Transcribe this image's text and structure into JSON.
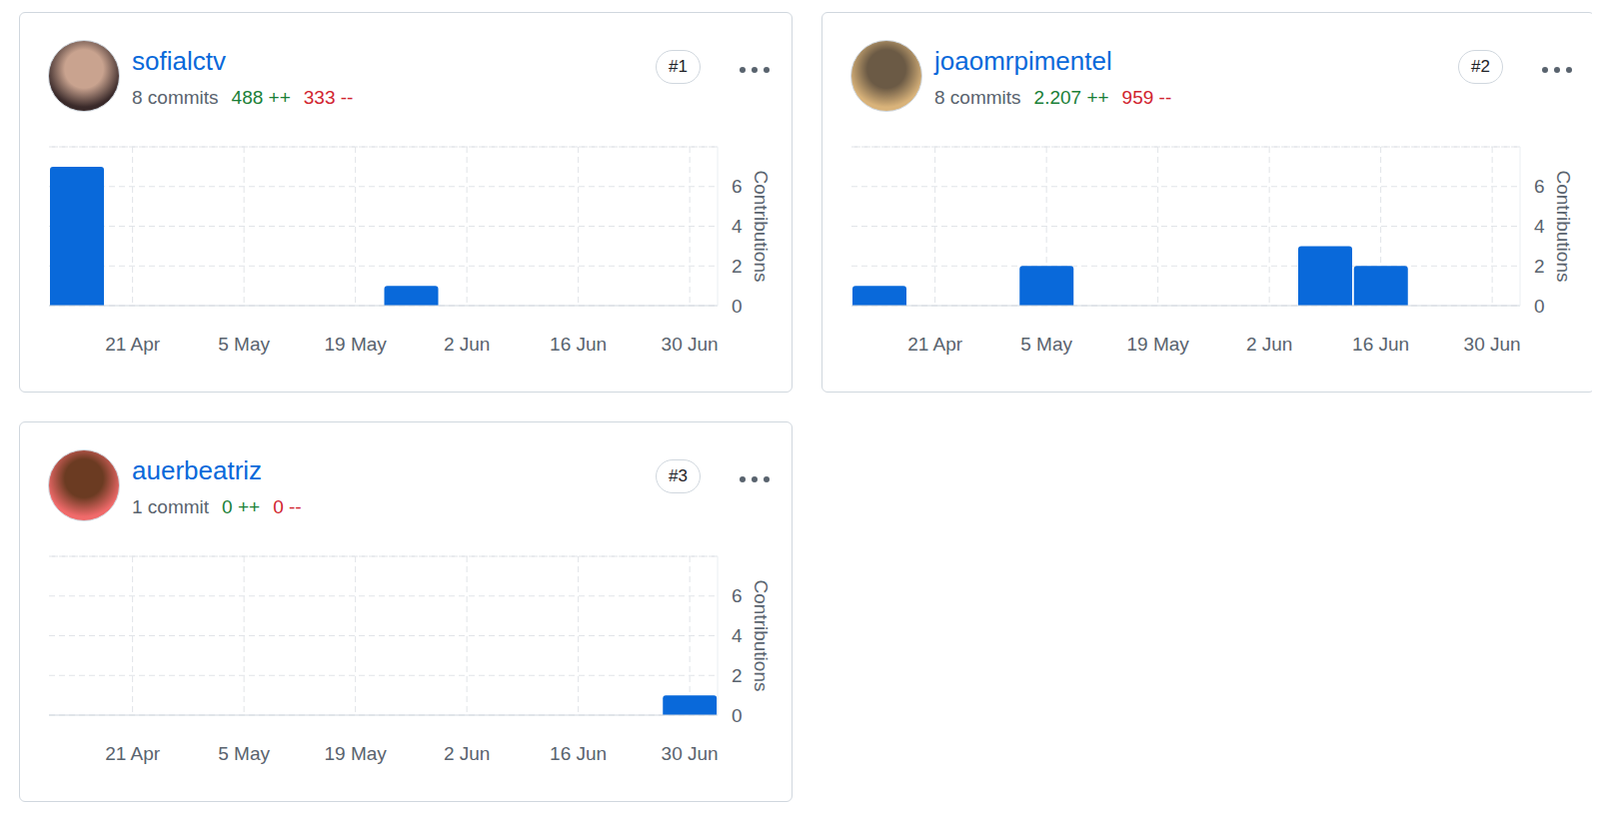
{
  "chart_data": [
    {
      "type": "bar",
      "title": "sofialctv",
      "rank": "#1",
      "commits": "8 commits",
      "additions": "488 ++",
      "deletions": "333 --",
      "categories": [
        null,
        "21 Apr",
        null,
        "5 May",
        null,
        "19 May",
        null,
        "2 Jun",
        null,
        "16 Jun",
        null,
        "30 Jun"
      ],
      "values": [
        7,
        0,
        0,
        0,
        0,
        0,
        1,
        0,
        0,
        0,
        0,
        0
      ],
      "color": "#0969da",
      "ylim": [
        0,
        8
      ],
      "yticks": [
        0,
        2,
        4,
        6
      ],
      "y_label": "Contributions",
      "grid": true
    },
    {
      "type": "bar",
      "title": "joaomrpimentel",
      "rank": "#2",
      "commits": "8 commits",
      "additions": "2.207 ++",
      "deletions": "959 --",
      "categories": [
        null,
        "21 Apr",
        null,
        "5 May",
        null,
        "19 May",
        null,
        "2 Jun",
        null,
        "16 Jun",
        null,
        "30 Jun"
      ],
      "values": [
        1,
        0,
        0,
        2,
        0,
        0,
        0,
        0,
        3,
        2,
        0,
        0
      ],
      "color": "#0969da",
      "ylim": [
        0,
        8
      ],
      "yticks": [
        0,
        2,
        4,
        6
      ],
      "y_label": "Contributions",
      "grid": true
    },
    {
      "type": "bar",
      "title": "auerbeatriz",
      "rank": "#3",
      "commits": "1 commit",
      "additions": "0 ++",
      "deletions": "0 --",
      "categories": [
        null,
        "21 Apr",
        null,
        "5 May",
        null,
        "19 May",
        null,
        "2 Jun",
        null,
        "16 Jun",
        null,
        "30 Jun"
      ],
      "values": [
        0,
        0,
        0,
        0,
        0,
        0,
        0,
        0,
        0,
        0,
        0,
        1
      ],
      "color": "#0969da",
      "ylim": [
        0,
        8
      ],
      "yticks": [
        0,
        2,
        4,
        6
      ],
      "y_label": "Contributions",
      "grid": true
    }
  ]
}
